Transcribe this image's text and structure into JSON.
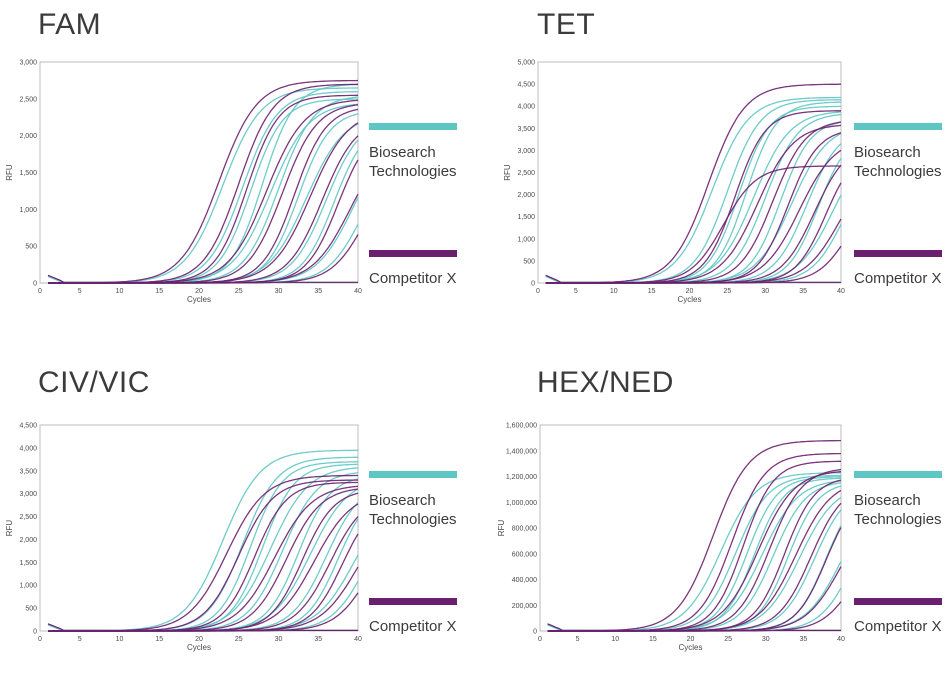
{
  "colors": {
    "biosearch": "#5ec7c3",
    "competitor": "#6b1f6f",
    "frame": "#bdbdbd"
  },
  "legend": {
    "biosearch_label": "Biosearch\nTechnologies",
    "competitor_label": "Competitor X"
  },
  "chart_data": [
    {
      "type": "line",
      "title": "FAM",
      "xlabel": "Cycles",
      "ylabel": "RFU",
      "xlim": [
        0,
        40
      ],
      "ylim": [
        0,
        3000
      ],
      "xticks": [
        "0",
        "5",
        "10",
        "15",
        "20",
        "25",
        "30",
        "35",
        "40"
      ],
      "yticks": [
        "0",
        "500",
        "1,000",
        "1,500",
        "2,000",
        "2,500",
        "3,000"
      ],
      "series": [
        {
          "group": "biosearch",
          "values": [
            {
              "ct": 19.0,
              "plateau": 2650
            },
            {
              "ct": 21.5,
              "plateau": 2600
            },
            {
              "ct": 22.5,
              "plateau": 2500
            },
            {
              "ct": 25.0,
              "plateau": 2450
            },
            {
              "ct": 26.0,
              "plateau": 2550
            },
            {
              "ct": 28.5,
              "plateau": 2350
            },
            {
              "ct": 29.5,
              "plateau": 2300
            },
            {
              "ct": 32.0,
              "plateau": 2250
            },
            {
              "ct": 33.0,
              "plateau": 2200
            },
            {
              "ct": 35.5,
              "plateau": 2100
            },
            {
              "ct": 36.5,
              "plateau": 1800
            },
            {
              "ct": 24.0,
              "plateau": 2700
            }
          ]
        },
        {
          "group": "competitor",
          "values": [
            {
              "ct": 18.5,
              "plateau": 2750
            },
            {
              "ct": 21.0,
              "plateau": 2700
            },
            {
              "ct": 22.0,
              "plateau": 2550
            },
            {
              "ct": 24.5,
              "plateau": 2500
            },
            {
              "ct": 26.5,
              "plateau": 2450
            },
            {
              "ct": 28.0,
              "plateau": 2400
            },
            {
              "ct": 30.0,
              "plateau": 2350
            },
            {
              "ct": 31.5,
              "plateau": 2250
            },
            {
              "ct": 33.5,
              "plateau": 2150
            },
            {
              "ct": 35.0,
              "plateau": 2000
            },
            {
              "ct": 37.0,
              "plateau": 1700
            }
          ]
        }
      ]
    },
    {
      "type": "line",
      "title": "TET",
      "xlabel": "Cycles",
      "ylabel": "RFU",
      "xlim": [
        0,
        40
      ],
      "ylim": [
        0,
        5000
      ],
      "xticks": [
        "0",
        "5",
        "10",
        "15",
        "20",
        "25",
        "30",
        "35",
        "40"
      ],
      "yticks": [
        "0",
        "500",
        "1,000",
        "1,500",
        "2,000",
        "2,500",
        "3,000",
        "3,500",
        "4,000",
        "4,500",
        "5,000"
      ],
      "series": [
        {
          "group": "biosearch",
          "values": [
            {
              "ct": 19.0,
              "plateau": 4200
            },
            {
              "ct": 21.0,
              "plateau": 4150
            },
            {
              "ct": 22.5,
              "plateau": 4000
            },
            {
              "ct": 24.5,
              "plateau": 3900
            },
            {
              "ct": 26.0,
              "plateau": 3850
            },
            {
              "ct": 28.0,
              "plateau": 3700
            },
            {
              "ct": 29.5,
              "plateau": 3600
            },
            {
              "ct": 31.5,
              "plateau": 3550
            },
            {
              "ct": 33.0,
              "plateau": 3450
            },
            {
              "ct": 35.0,
              "plateau": 3300
            },
            {
              "ct": 36.5,
              "plateau": 3000
            },
            {
              "ct": 23.5,
              "plateau": 4100
            }
          ]
        },
        {
          "group": "competitor",
          "values": [
            {
              "ct": 18.5,
              "plateau": 4500
            },
            {
              "ct": 20.5,
              "plateau": 2650
            },
            {
              "ct": 22.0,
              "plateau": 3900
            },
            {
              "ct": 25.0,
              "plateau": 3600
            },
            {
              "ct": 27.0,
              "plateau": 3700
            },
            {
              "ct": 29.0,
              "plateau": 3500
            },
            {
              "ct": 30.5,
              "plateau": 3300
            },
            {
              "ct": 32.5,
              "plateau": 3200
            },
            {
              "ct": 34.0,
              "plateau": 3100
            },
            {
              "ct": 36.0,
              "plateau": 2900
            },
            {
              "ct": 37.5,
              "plateau": 2500
            }
          ]
        }
      ]
    },
    {
      "type": "line",
      "title": "CIV/VIC",
      "xlabel": "Cycles",
      "ylabel": "RFU",
      "xlim": [
        0,
        40
      ],
      "ylim": [
        0,
        4500
      ],
      "xticks": [
        "0",
        "5",
        "10",
        "15",
        "20",
        "25",
        "30",
        "35",
        "40"
      ],
      "yticks": [
        "0",
        "500",
        "1,000",
        "1,500",
        "2,000",
        "2,500",
        "3,000",
        "3,500",
        "4,000",
        "4,500"
      ],
      "series": [
        {
          "group": "biosearch",
          "values": [
            {
              "ct": 19.0,
              "plateau": 3950
            },
            {
              "ct": 21.5,
              "plateau": 3800
            },
            {
              "ct": 22.5,
              "plateau": 3700
            },
            {
              "ct": 25.0,
              "plateau": 3600
            },
            {
              "ct": 26.5,
              "plateau": 3500
            },
            {
              "ct": 28.5,
              "plateau": 3400
            },
            {
              "ct": 30.0,
              "plateau": 3350
            },
            {
              "ct": 32.0,
              "plateau": 3250
            },
            {
              "ct": 33.5,
              "plateau": 3150
            },
            {
              "ct": 35.5,
              "plateau": 3000
            },
            {
              "ct": 37.0,
              "plateau": 2800
            },
            {
              "ct": 24.0,
              "plateau": 3650
            }
          ]
        },
        {
          "group": "competitor",
          "values": [
            {
              "ct": 19.5,
              "plateau": 3400
            },
            {
              "ct": 21.0,
              "plateau": 3300
            },
            {
              "ct": 23.0,
              "plateau": 3250
            },
            {
              "ct": 25.5,
              "plateau": 3200
            },
            {
              "ct": 27.0,
              "plateau": 3150
            },
            {
              "ct": 29.0,
              "plateau": 3100
            },
            {
              "ct": 30.5,
              "plateau": 3050
            },
            {
              "ct": 32.5,
              "plateau": 3000
            },
            {
              "ct": 34.0,
              "plateau": 2900
            },
            {
              "ct": 36.0,
              "plateau": 2800
            },
            {
              "ct": 37.5,
              "plateau": 2500
            }
          ]
        }
      ]
    },
    {
      "type": "line",
      "title": "HEX/NED",
      "xlabel": "Cycles",
      "ylabel": "RFU",
      "xlim": [
        0,
        40
      ],
      "ylim": [
        0,
        1600000
      ],
      "xticks": [
        "0",
        "5",
        "10",
        "15",
        "20",
        "25",
        "30",
        "35",
        "40"
      ],
      "yticks": [
        "0",
        "200,000",
        "400,000",
        "600,000",
        "800,000",
        "1,000,000",
        "1,200,000",
        "1,400,000",
        "1,600,000"
      ],
      "series": [
        {
          "group": "biosearch",
          "values": [
            {
              "ct": 20.0,
              "plateau": 1230000
            },
            {
              "ct": 22.0,
              "plateau": 1210000
            },
            {
              "ct": 23.5,
              "plateau": 1200000
            },
            {
              "ct": 25.5,
              "plateau": 1180000
            },
            {
              "ct": 27.0,
              "plateau": 1170000
            },
            {
              "ct": 29.0,
              "plateau": 1160000
            },
            {
              "ct": 30.5,
              "plateau": 1140000
            },
            {
              "ct": 32.5,
              "plateau": 1130000
            },
            {
              "ct": 34.0,
              "plateau": 1120000
            },
            {
              "ct": 36.0,
              "plateau": 1080000
            },
            {
              "ct": 37.5,
              "plateau": 1000000
            },
            {
              "ct": 24.5,
              "plateau": 1190000
            }
          ]
        },
        {
          "group": "competitor",
          "values": [
            {
              "ct": 19.0,
              "plateau": 1480000
            },
            {
              "ct": 21.5,
              "plateau": 1380000
            },
            {
              "ct": 23.0,
              "plateau": 1320000
            },
            {
              "ct": 25.0,
              "plateau": 1250000
            },
            {
              "ct": 26.5,
              "plateau": 1270000
            },
            {
              "ct": 28.5,
              "plateau": 1200000
            },
            {
              "ct": 30.0,
              "plateau": 1180000
            },
            {
              "ct": 32.0,
              "plateau": 1150000
            },
            {
              "ct": 34.0,
              "plateau": 1100000
            },
            {
              "ct": 36.0,
              "plateau": 1000000
            },
            {
              "ct": 38.0,
              "plateau": 800000
            }
          ]
        }
      ]
    }
  ]
}
